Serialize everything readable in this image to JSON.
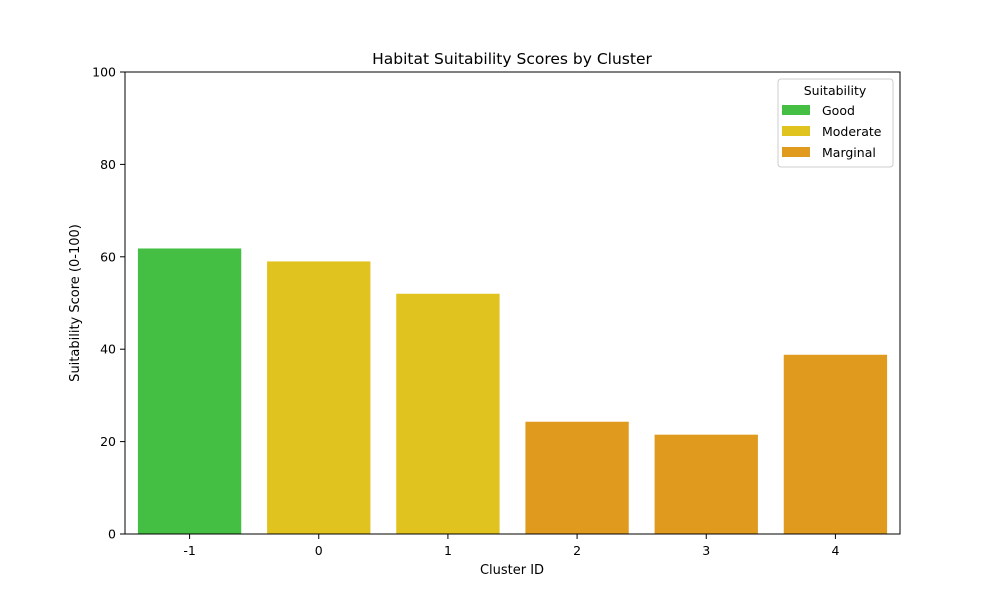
{
  "chart_data": {
    "type": "bar",
    "title": "Habitat Suitability Scores by Cluster",
    "xlabel": "Cluster ID",
    "ylabel": "Suitability Score (0-100)",
    "ylim": [
      0,
      100
    ],
    "yticks": [
      0,
      20,
      40,
      60,
      80,
      100
    ],
    "categories": [
      "-1",
      "0",
      "1",
      "2",
      "3",
      "4"
    ],
    "values": [
      61.8,
      59.0,
      52.0,
      24.3,
      21.5,
      38.8
    ],
    "bar_classes": [
      "Good",
      "Moderate",
      "Moderate",
      "Marginal",
      "Marginal",
      "Marginal"
    ],
    "grid": false,
    "legend": {
      "title": "Suitability",
      "placement": "top-right",
      "entries": [
        {
          "label": "Good",
          "color": "#44bf44"
        },
        {
          "label": "Moderate",
          "color": "#e0c31e"
        },
        {
          "label": "Marginal",
          "color": "#e09b1e"
        }
      ]
    }
  }
}
